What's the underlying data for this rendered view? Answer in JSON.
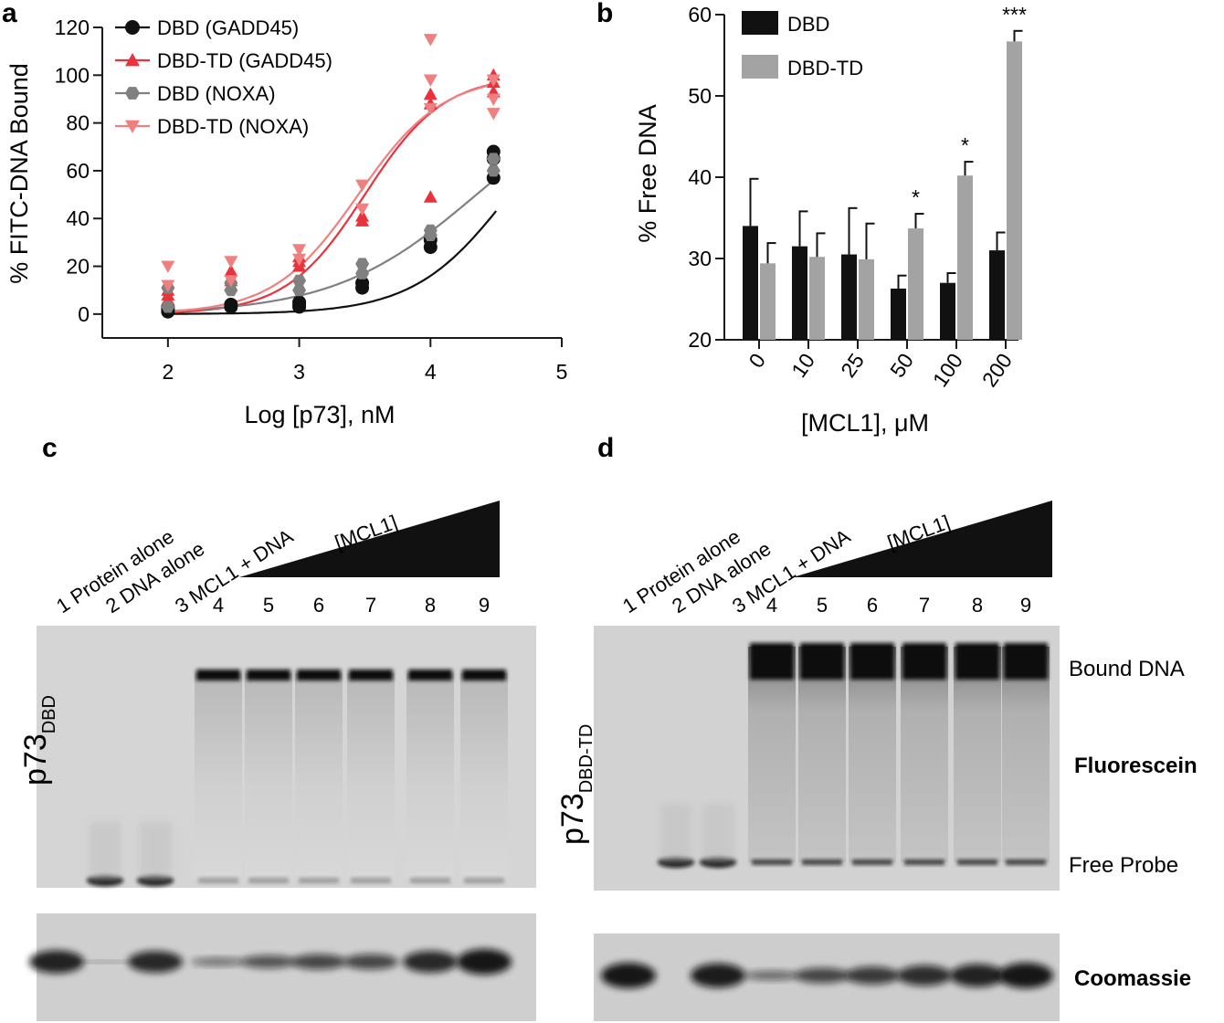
{
  "panels": {
    "a": "a",
    "b": "b",
    "c": "c",
    "d": "d"
  },
  "chart_data": [
    {
      "type": "scatter",
      "panel": "a",
      "xlabel": "Log [p73], nM",
      "ylabel": "% FITC-DNA  Bound",
      "xlim": [
        1.5,
        5
      ],
      "ylim": [
        -10,
        120
      ],
      "x_ticks": [
        "2",
        "3",
        "4",
        "5"
      ],
      "y_ticks": [
        "0",
        "20",
        "40",
        "60",
        "80",
        "100",
        "120"
      ],
      "legend_position": "top-left",
      "series": [
        {
          "name": "DBD (GADD45)",
          "marker": "circle",
          "color": "#111111",
          "x": [
            2,
            2,
            2,
            2.48,
            2.48,
            3,
            3,
            3,
            3.48,
            3.48,
            4,
            4,
            4.48,
            4.48,
            4.48
          ],
          "y": [
            1,
            2,
            3,
            3,
            4,
            3,
            4,
            5,
            11,
            13,
            28,
            31,
            57,
            65,
            68
          ],
          "fit": {
            "bottom": 0,
            "top": 100,
            "logec50": 4.6,
            "hill": 1.2
          }
        },
        {
          "name": "DBD-TD (GADD45)",
          "marker": "triangle-up",
          "color": "#e8333c",
          "x": [
            2,
            2,
            2,
            2.48,
            2.48,
            3,
            3,
            3,
            3.48,
            3.48,
            4,
            4,
            4,
            4.48,
            4.48,
            4.48
          ],
          "y": [
            6,
            8,
            10,
            14,
            18,
            20,
            22,
            24,
            39,
            41,
            49,
            88,
            92,
            93,
            97,
            100
          ],
          "fit": {
            "bottom": 0,
            "top": 100,
            "logec50": 3.5,
            "hill": 1.45
          }
        },
        {
          "name": "DBD (NOXA)",
          "marker": "hexagon",
          "color": "#808080",
          "x": [
            2,
            2,
            2.48,
            2.48,
            3,
            3,
            3.48,
            3.48,
            4,
            4,
            4.48,
            4.48
          ],
          "y": [
            3,
            11,
            10,
            13,
            10,
            14,
            17,
            21,
            33,
            35,
            60,
            65
          ],
          "fit": {
            "bottom": 0,
            "top": 100,
            "logec50": 4.35,
            "hill": 0.8
          }
        },
        {
          "name": "DBD-TD (NOXA)",
          "marker": "triangle-down",
          "color": "#f08080",
          "x": [
            2,
            2,
            2.48,
            2.48,
            3,
            3,
            3.48,
            3.48,
            4,
            4,
            4,
            4.48,
            4.48,
            4.48
          ],
          "y": [
            12,
            20,
            14,
            22,
            23,
            27,
            44,
            54,
            86,
            98,
            115,
            84,
            90,
            98
          ],
          "fit": {
            "bottom": 0,
            "top": 100,
            "logec50": 3.45,
            "hill": 1.35
          }
        }
      ]
    },
    {
      "type": "bar",
      "panel": "b",
      "xlabel": "[MCL1], μM",
      "ylabel": "% Free DNA",
      "ylim": [
        20,
        60
      ],
      "y_ticks": [
        "20",
        "30",
        "40",
        "50",
        "60"
      ],
      "categories": [
        "0",
        "10",
        "25",
        "50",
        "100",
        "200"
      ],
      "legend_position": "top-left",
      "series": [
        {
          "name": "DBD",
          "color": "#111111",
          "values": [
            34,
            31.5,
            30.5,
            26.3,
            27,
            31
          ],
          "errors": [
            5.8,
            4.3,
            5.7,
            1.6,
            1.2,
            2.2
          ]
        },
        {
          "name": "DBD-TD",
          "color": "#a3a3a3",
          "values": [
            29.4,
            30.2,
            29.9,
            33.7,
            40.2,
            56.7
          ],
          "errors": [
            2.5,
            2.9,
            4.4,
            1.8,
            1.7,
            1.3
          ]
        }
      ],
      "annotations": [
        {
          "category": "50",
          "series": "DBD-TD",
          "text": "*"
        },
        {
          "category": "100",
          "series": "DBD-TD",
          "text": "*"
        },
        {
          "category": "200",
          "series": "DBD-TD",
          "text": "***"
        }
      ]
    }
  ],
  "gels": {
    "lane_header_labels": [
      "1 Protein alone",
      "2 DNA alone",
      "3 MCL1 + DNA"
    ],
    "lane_numbers": [
      "4",
      "5",
      "6",
      "7",
      "8",
      "9"
    ],
    "gradient_label": "[MCL1]",
    "c": {
      "protein_prefix": "p73",
      "protein_subscript": "DBD"
    },
    "d": {
      "protein_prefix": "p73",
      "protein_subscript": "DBD-TD",
      "labels": {
        "bound": "Bound DNA",
        "fluorescein": "Fluorescein",
        "free": "Free Probe",
        "coomassie": "Coomassie"
      }
    }
  }
}
